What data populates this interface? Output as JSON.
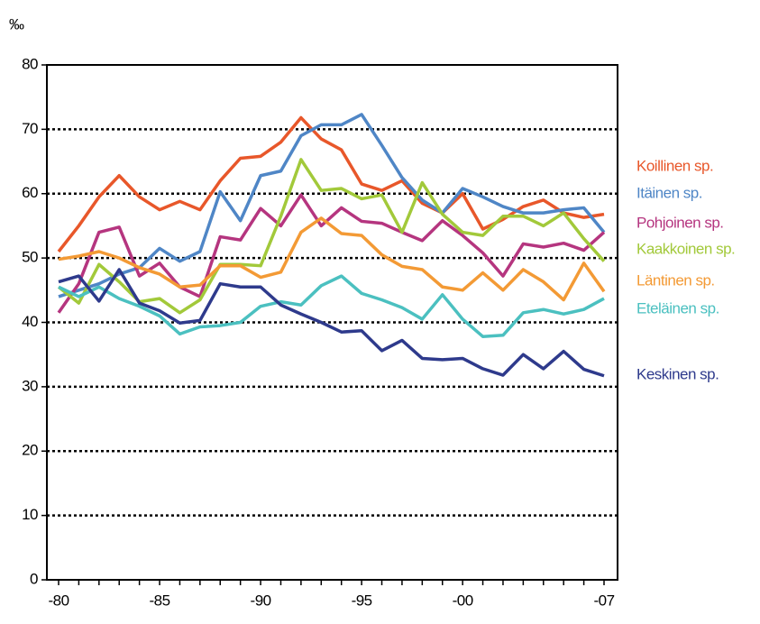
{
  "chart_data": {
    "type": "line",
    "ylabel": "‰",
    "categories": [
      "-80",
      null,
      null,
      null,
      null,
      "-85",
      null,
      null,
      null,
      null,
      "-90",
      null,
      null,
      null,
      null,
      "-95",
      null,
      null,
      null,
      null,
      "-00",
      null,
      null,
      null,
      null,
      null,
      null,
      "-07"
    ],
    "ylim": [
      0,
      80
    ],
    "yticks": [
      0,
      10,
      20,
      30,
      40,
      50,
      60,
      70,
      80
    ],
    "grid": true,
    "series": [
      {
        "name": "Koillinen sp.",
        "color": "#e8572a",
        "values": [
          51,
          55,
          59.5,
          62.8,
          59.5,
          57.5,
          58.8,
          57.5,
          62,
          65.5,
          65.8,
          68,
          71.8,
          68.5,
          66.8,
          61.5,
          60.5,
          62,
          58.5,
          57,
          60,
          54.5,
          56,
          58,
          59,
          57,
          56.3,
          56.8
        ]
      },
      {
        "name": "Itäinen sp.",
        "color": "#4f86c6",
        "values": [
          44,
          45,
          46,
          47.5,
          48.5,
          51.5,
          49.5,
          51,
          60.3,
          55.8,
          62.8,
          63.5,
          69,
          70.7,
          70.7,
          72.3,
          67.5,
          62.5,
          59,
          57,
          60.8,
          59.5,
          58,
          57,
          57,
          57.5,
          57.8,
          54
        ]
      },
      {
        "name": "Pohjoinen sp.",
        "color": "#b5357f",
        "values": [
          41.5,
          46,
          54,
          54.8,
          47.2,
          49.2,
          45.5,
          44,
          53.3,
          52.8,
          57.7,
          55,
          59.8,
          55,
          57.8,
          55.7,
          55.4,
          54,
          52.7,
          55.8,
          53.5,
          50.8,
          47.2,
          52.2,
          51.7,
          52.3,
          51.2,
          54
        ]
      },
      {
        "name": "Kaakkoinen sp.",
        "color": "#a2c93a",
        "values": [
          45.5,
          43,
          49,
          46.3,
          43.2,
          43.7,
          41.5,
          43.5,
          49,
          49,
          48.8,
          56.5,
          65.3,
          60.5,
          60.8,
          59.2,
          59.8,
          54,
          61.7,
          56.8,
          54,
          53.5,
          56.5,
          56.5,
          55,
          57,
          53,
          49.5
        ]
      },
      {
        "name": "Läntinen sp.",
        "color": "#f39a35",
        "values": [
          49.8,
          50.3,
          51,
          50,
          48.5,
          47.5,
          45.5,
          45.8,
          48.8,
          48.8,
          47,
          47.8,
          54,
          56.2,
          53.8,
          53.5,
          50.5,
          48.7,
          48.2,
          45.5,
          45,
          47.7,
          45,
          48.2,
          46.3,
          43.5,
          49.2,
          44.8
        ]
      },
      {
        "name": "Eteläinen sp.",
        "color": "#4bc0c0",
        "values": [
          45.5,
          44,
          45.5,
          43.7,
          42.5,
          41,
          38.2,
          39.3,
          39.5,
          40,
          42.5,
          43.2,
          42.7,
          45.7,
          47.2,
          44.5,
          43.5,
          42.3,
          40.5,
          44.3,
          40.5,
          37.8,
          38,
          41.5,
          42,
          41.3,
          42,
          43.7
        ]
      },
      {
        "name": "Keskinen sp.",
        "color": "#2e3a8c",
        "values": [
          46.3,
          47.2,
          43.3,
          48.2,
          43,
          41.8,
          39.9,
          40.3,
          46,
          45.5,
          45.5,
          42.7,
          41.3,
          40,
          38.5,
          38.7,
          35.6,
          37.2,
          34.4,
          34.2,
          34.4,
          32.8,
          31.8,
          35,
          32.8,
          35.5,
          32.7,
          31.7
        ]
      }
    ]
  }
}
